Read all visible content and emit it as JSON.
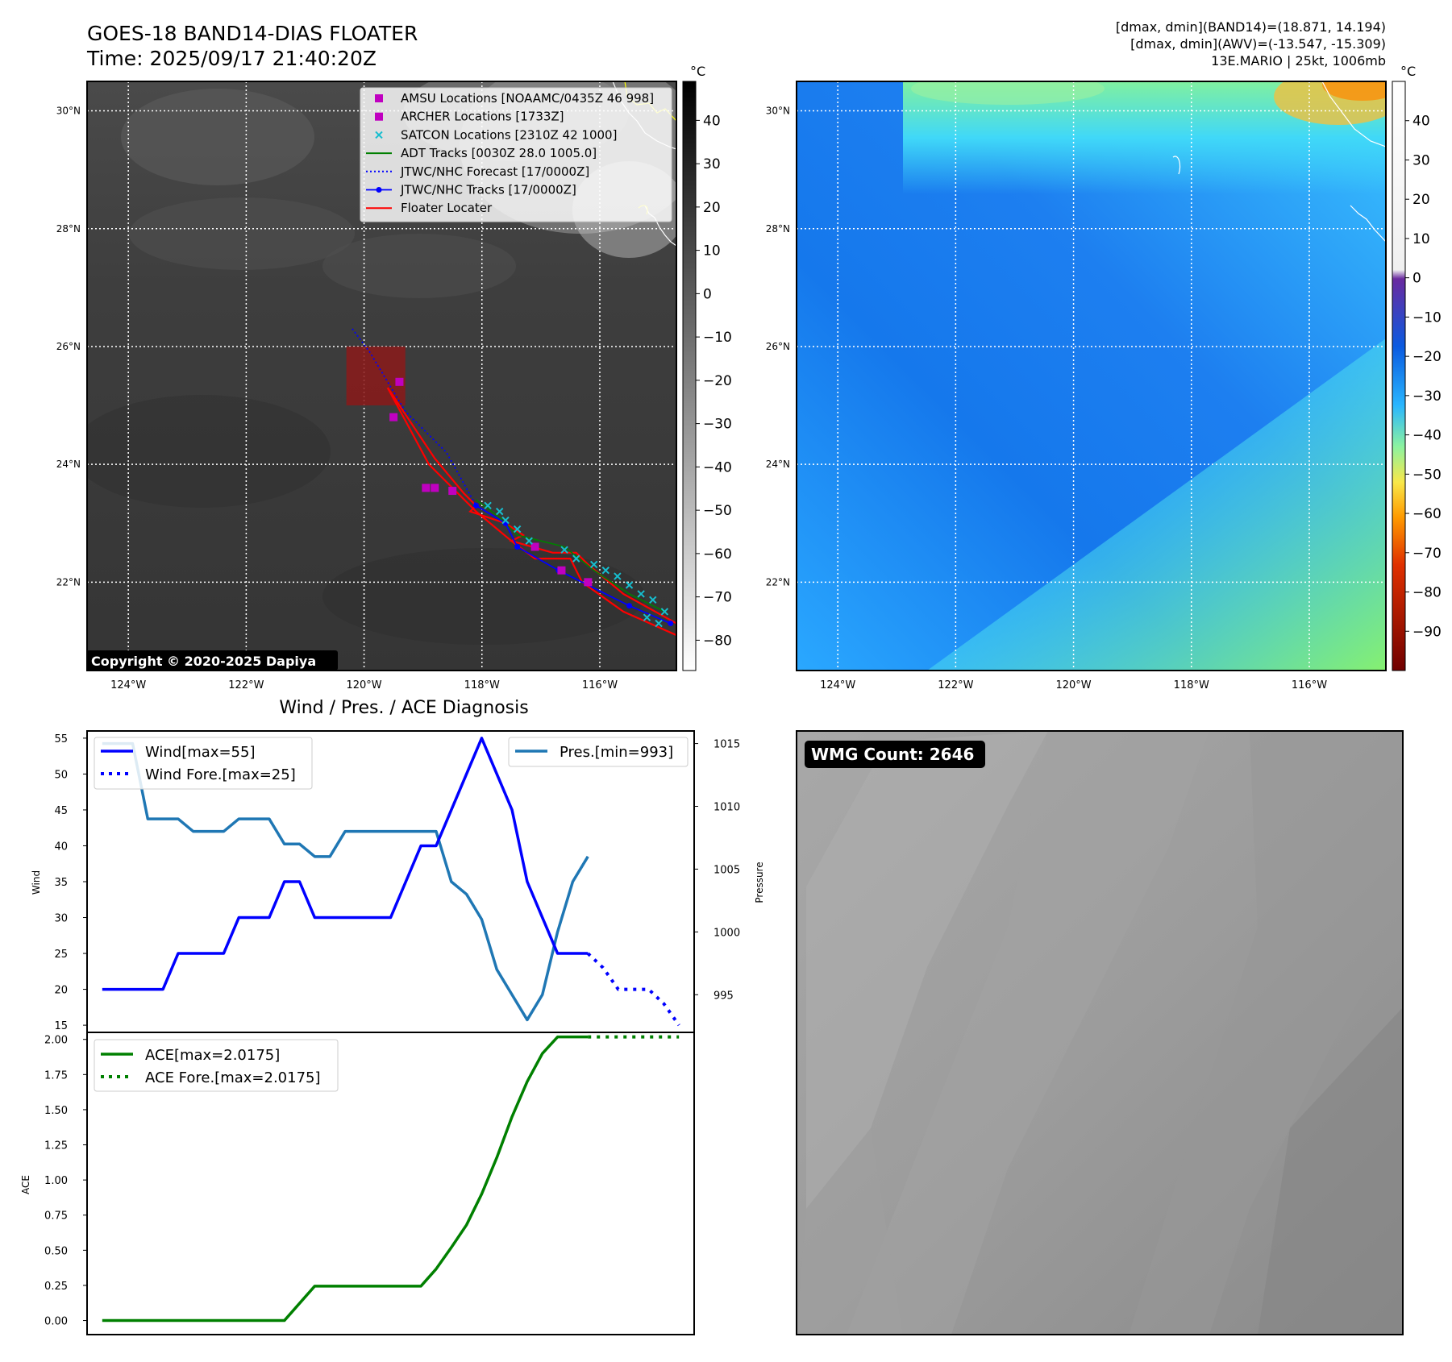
{
  "header": {
    "title": "GOES-18 BAND14-DIAS FLOATER",
    "time": "Time: 2025/09/17 21:40:20Z",
    "stats1": "[dmax, dmin](BAND14)=(18.871, 14.194)",
    "stats2": "[dmax, dmin](AWV)=(-13.547, -15.309)",
    "storm": "13E.MARIO | 25kt, 1006mb"
  },
  "map": {
    "lon_ticks": [
      "124°W",
      "122°W",
      "120°W",
      "118°W",
      "116°W"
    ],
    "lat_ticks": [
      "30°N",
      "28°N",
      "26°N",
      "24°N",
      "22°N"
    ],
    "lon_values": [
      -124,
      -122,
      -120,
      -118,
      -116
    ],
    "lat_values": [
      30,
      28,
      26,
      24,
      22
    ],
    "lon_range": [
      -124.7,
      -114.7
    ],
    "lat_range": [
      20.5,
      30.5
    ],
    "copyright": "Copyright © 2020-2025 Dapiya",
    "legend": [
      {
        "label": "AMSU Locations [NOAAMC/0435Z 46 998]",
        "color": "#c000c0",
        "marker": "square"
      },
      {
        "label": "ARCHER Locations [1733Z]",
        "color": "#c000c0",
        "marker": "square"
      },
      {
        "label": "SATCON Locations [2310Z 42 1000]",
        "color": "#17becf",
        "marker": "x"
      },
      {
        "label": "ADT Tracks [0030Z 28.0 1005.0]",
        "color": "#008000",
        "marker": "line"
      },
      {
        "label": "JTWC/NHC Forecast [17/0000Z]",
        "color": "#0000ff",
        "marker": "dotted"
      },
      {
        "label": "JTWC/NHC Tracks [17/0000Z]",
        "color": "#0000ff",
        "marker": "line-dot"
      },
      {
        "label": "Floater Locater",
        "color": "#ff0000",
        "marker": "line"
      }
    ],
    "floater_box": {
      "lon": [
        -120.3,
        -119.3
      ],
      "lat": [
        25.0,
        26.0
      ]
    },
    "amsu_points": [
      [
        -119.4,
        25.4
      ],
      [
        -119.5,
        24.8
      ],
      [
        -118.95,
        23.6
      ],
      [
        -118.8,
        23.6
      ],
      [
        -118.5,
        23.55
      ],
      [
        -117.1,
        22.6
      ],
      [
        -116.65,
        22.2
      ],
      [
        -116.2,
        22.0
      ]
    ],
    "jtwc_track": [
      [
        -118.1,
        23.3
      ],
      [
        -117.6,
        23.0
      ],
      [
        -117.4,
        22.6
      ],
      [
        -116.7,
        22.2
      ],
      [
        -115.5,
        21.6
      ],
      [
        -114.8,
        21.3
      ]
    ],
    "jtwc_forecast": [
      [
        -120.2,
        26.3
      ],
      [
        -119.9,
        25.9
      ],
      [
        -119.6,
        25.4
      ],
      [
        -119.3,
        24.9
      ],
      [
        -118.6,
        24.2
      ],
      [
        -118.1,
        23.3
      ]
    ],
    "adt_track": [
      [
        -118.1,
        23.4
      ],
      [
        -117.7,
        23.1
      ],
      [
        -117.4,
        22.8
      ],
      [
        -117.0,
        22.7
      ],
      [
        -116.6,
        22.6
      ],
      [
        -116.1,
        22.2
      ],
      [
        -115.5,
        21.8
      ],
      [
        -114.9,
        21.5
      ]
    ],
    "floater_track": [
      [
        -119.6,
        25.3
      ],
      [
        -118.8,
        24.1
      ],
      [
        -118.3,
        23.5
      ],
      [
        -118.1,
        23.3
      ],
      [
        -118.2,
        23.2
      ],
      [
        -117.9,
        23.1
      ],
      [
        -117.6,
        23.0
      ],
      [
        -117.3,
        22.8
      ],
      [
        -117.5,
        22.7
      ],
      [
        -116.8,
        22.5
      ],
      [
        -116.4,
        22.5
      ],
      [
        -116.2,
        22.3
      ],
      [
        -115.6,
        21.8
      ],
      [
        -114.7,
        21.3
      ],
      [
        -114.7,
        21.1
      ],
      [
        -115.6,
        21.5
      ],
      [
        -116.3,
        22.0
      ],
      [
        -116.5,
        22.4
      ],
      [
        -117.1,
        22.4
      ],
      [
        -117.5,
        22.7
      ],
      [
        -118.1,
        23.2
      ],
      [
        -118.3,
        23.4
      ],
      [
        -118.9,
        24.0
      ],
      [
        -119.6,
        25.3
      ]
    ],
    "satcon_points": [
      [
        -117.9,
        23.3
      ],
      [
        -117.7,
        23.2
      ],
      [
        -117.6,
        23.05
      ],
      [
        -117.4,
        22.9
      ],
      [
        -117.2,
        22.7
      ],
      [
        -116.6,
        22.55
      ],
      [
        -116.4,
        22.4
      ],
      [
        -116.1,
        22.3
      ],
      [
        -115.9,
        22.2
      ],
      [
        -115.7,
        22.1
      ],
      [
        -115.5,
        21.95
      ],
      [
        -115.3,
        21.8
      ],
      [
        -115.1,
        21.7
      ],
      [
        -114.9,
        21.5
      ],
      [
        -115.2,
        21.4
      ],
      [
        -115.0,
        21.3
      ]
    ]
  },
  "colorbar_gray": {
    "unit": "°C",
    "ticks": [
      "40",
      "30",
      "20",
      "10",
      "0",
      "−10",
      "−20",
      "−30",
      "−40",
      "−50",
      "−60",
      "−70",
      "−80"
    ],
    "tick_values": [
      40,
      30,
      20,
      10,
      0,
      -10,
      -20,
      -30,
      -40,
      -50,
      -60,
      -70,
      -80
    ],
    "range": [
      -87,
      49
    ]
  },
  "colorbar_color": {
    "unit": "°C",
    "ticks": [
      "40",
      "30",
      "20",
      "10",
      "0",
      "−10",
      "−20",
      "−30",
      "−40",
      "−50",
      "−60",
      "−70",
      "−80",
      "−90"
    ],
    "tick_values": [
      40,
      30,
      20,
      10,
      0,
      -10,
      -20,
      -30,
      -40,
      -50,
      -60,
      -70,
      -80,
      -90
    ],
    "range": [
      -100,
      50
    ]
  },
  "diag": {
    "title": "Wind / Pres. / ACE Diagnosis",
    "wind_label": "Wind",
    "pres_label": "Pressure",
    "ace_label": "ACE",
    "wind_legend": "Wind[max=55]",
    "wind_fore_legend": "Wind Fore.[max=25]",
    "pres_legend": "Pres.[min=993]",
    "ace_legend": "ACE[max=2.0175]",
    "ace_fore_legend": "ACE Fore.[max=2.0175]",
    "wind_ticks": [
      "55",
      "50",
      "45",
      "40",
      "35",
      "30",
      "25",
      "20",
      "15"
    ],
    "pres_ticks": [
      "1015",
      "1010",
      "1005",
      "1000",
      "995"
    ],
    "ace_ticks": [
      "2.00",
      "1.75",
      "1.50",
      "1.25",
      "1.00",
      "0.75",
      "0.50",
      "0.25",
      "0.00"
    ]
  },
  "chart_data": [
    {
      "type": "line",
      "title": "Wind / Pres. / ACE Diagnosis",
      "ylabel": "Wind",
      "ylim": [
        14,
        56
      ],
      "series": [
        {
          "name": "Wind[max=55]",
          "color": "#0000ff",
          "style": "solid",
          "x": [
            0,
            1,
            2,
            3,
            4,
            5,
            6,
            7,
            8,
            9,
            10,
            11,
            12,
            13,
            14,
            15,
            16,
            17,
            18,
            19,
            20
          ],
          "values": [
            20,
            20,
            20,
            20,
            20,
            25,
            25,
            25,
            25,
            30,
            30,
            30,
            35,
            35,
            30,
            30,
            30,
            30,
            30,
            30,
            35
          ]
        },
        {
          "name": "Wind Fore.[max=25]",
          "color": "#0000ff",
          "style": "dotted",
          "x": [
            32,
            33,
            34,
            35,
            36,
            37,
            38
          ],
          "values": [
            25,
            23,
            20,
            20,
            20,
            18,
            15
          ]
        }
      ],
      "wind_tail": {
        "x": [
          20,
          21,
          22,
          23,
          24,
          25,
          26,
          27,
          28,
          29,
          30,
          31,
          32
        ],
        "values": [
          35,
          40,
          40,
          45,
          50,
          55,
          50,
          45,
          35,
          30,
          25,
          25,
          25
        ]
      },
      "x_range": [
        -1,
        39
      ]
    },
    {
      "type": "line",
      "ylabel": "Pressure",
      "ylim": [
        992,
        1016
      ],
      "series": [
        {
          "name": "Pres.[min=993]",
          "color": "#1f77b4",
          "style": "solid",
          "x": [
            0,
            1,
            2,
            3,
            4,
            5,
            6,
            7,
            8,
            9,
            10,
            11,
            12,
            13,
            14,
            15,
            16,
            17,
            18,
            19,
            20,
            21,
            22,
            23,
            24,
            25,
            26,
            27,
            28,
            29,
            30,
            31,
            32
          ],
          "values": [
            1015,
            1015,
            1015,
            1009,
            1009,
            1009,
            1008,
            1008,
            1008,
            1009,
            1009,
            1009,
            1007,
            1007,
            1006,
            1006,
            1008,
            1008,
            1008,
            1008,
            1008,
            1008,
            1008,
            1004,
            1003,
            1001,
            997,
            995,
            993,
            995,
            1000,
            1004,
            1006
          ]
        }
      ]
    },
    {
      "type": "line",
      "ylabel": "ACE",
      "ylim": [
        -0.1,
        2.05
      ],
      "series": [
        {
          "name": "ACE[max=2.0175]",
          "color": "#008000",
          "style": "solid",
          "x": [
            0,
            1,
            2,
            3,
            4,
            5,
            6,
            7,
            8,
            9,
            10,
            11,
            12,
            13,
            14,
            15,
            16,
            17,
            18,
            19,
            20,
            21,
            22,
            23,
            24,
            25,
            26,
            27,
            28,
            29,
            30,
            31,
            32
          ],
          "values": [
            0,
            0,
            0,
            0,
            0,
            0,
            0,
            0,
            0,
            0,
            0,
            0,
            0,
            0.1225,
            0.245,
            0.245,
            0.245,
            0.245,
            0.245,
            0.245,
            0.245,
            0.245,
            0.367,
            0.52,
            0.68,
            0.9,
            1.16,
            1.45,
            1.7,
            1.9,
            2.0175,
            2.0175,
            2.0175
          ]
        },
        {
          "name": "ACE Fore.[max=2.0175]",
          "color": "#008000",
          "style": "dotted",
          "x": [
            32,
            33,
            34,
            35,
            36,
            37,
            38
          ],
          "values": [
            2.0175,
            2.0175,
            2.0175,
            2.0175,
            2.0175,
            2.0175,
            2.0175
          ]
        }
      ]
    }
  ],
  "wmg": {
    "label": "WMG Count: 2646"
  }
}
